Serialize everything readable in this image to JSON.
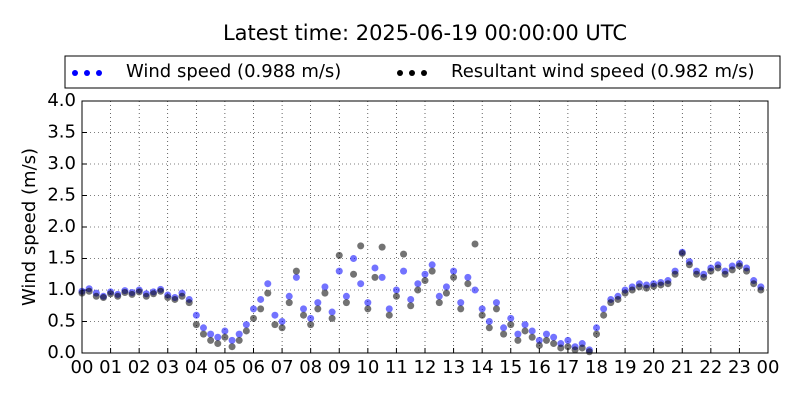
{
  "chart_data": {
    "type": "scatter",
    "title": "Latest time: 2025-06-19 00:00:00 UTC",
    "y_label": "Wind speed (m/s)",
    "x": [
      0,
      0.25,
      0.5,
      0.75,
      1,
      1.25,
      1.5,
      1.75,
      2,
      2.25,
      2.5,
      2.75,
      3,
      3.25,
      3.5,
      3.75,
      4,
      4.25,
      4.5,
      4.75,
      5,
      5.25,
      5.5,
      5.75,
      6,
      6.25,
      6.5,
      6.75,
      7,
      7.25,
      7.5,
      7.75,
      8,
      8.25,
      8.5,
      8.75,
      9,
      9.25,
      9.5,
      9.75,
      10,
      10.25,
      10.5,
      10.75,
      11,
      11.25,
      11.5,
      11.75,
      12,
      12.25,
      12.5,
      12.75,
      13,
      13.25,
      13.5,
      13.75,
      14,
      14.25,
      14.5,
      14.75,
      15,
      15.25,
      15.5,
      15.75,
      16,
      16.25,
      16.5,
      16.75,
      17,
      17.25,
      17.5,
      17.75,
      18,
      18.25,
      18.5,
      18.75,
      19,
      19.25,
      19.5,
      19.75,
      20,
      20.25,
      20.5,
      20.75,
      21,
      21.25,
      21.5,
      21.75,
      22,
      22.25,
      22.5,
      22.75,
      23,
      23.25,
      23.5,
      23.75
    ],
    "series": [
      {
        "name": "Wind speed (0.988 m/s)",
        "color": "#0000ff",
        "values": [
          0.98,
          1.02,
          0.95,
          0.9,
          0.97,
          0.93,
          0.99,
          0.96,
          1.0,
          0.94,
          0.97,
          1.01,
          0.92,
          0.88,
          0.95,
          0.85,
          0.6,
          0.4,
          0.3,
          0.25,
          0.35,
          0.2,
          0.3,
          0.45,
          0.7,
          0.85,
          1.1,
          0.6,
          0.5,
          0.9,
          1.2,
          0.7,
          0.55,
          0.8,
          1.05,
          0.65,
          1.3,
          0.9,
          1.5,
          1.1,
          0.8,
          1.35,
          1.2,
          0.7,
          1.0,
          1.3,
          0.85,
          1.1,
          1.25,
          1.4,
          0.9,
          1.05,
          1.3,
          0.8,
          1.2,
          1.0,
          0.7,
          0.5,
          0.8,
          0.4,
          0.55,
          0.3,
          0.45,
          0.35,
          0.2,
          0.3,
          0.25,
          0.15,
          0.2,
          0.1,
          0.15,
          0.05,
          0.4,
          0.7,
          0.85,
          0.9,
          1.0,
          1.05,
          1.1,
          1.08,
          1.1,
          1.12,
          1.15,
          1.3,
          1.6,
          1.45,
          1.3,
          1.25,
          1.35,
          1.4,
          1.3,
          1.38,
          1.42,
          1.35,
          1.15,
          1.05
        ]
      },
      {
        "name": "Resultant wind speed (0.982 m/s)",
        "color": "#000000",
        "values": [
          0.95,
          0.98,
          0.9,
          0.88,
          0.94,
          0.9,
          0.96,
          0.93,
          0.97,
          0.9,
          0.94,
          0.98,
          0.88,
          0.85,
          0.9,
          0.8,
          0.45,
          0.3,
          0.2,
          0.15,
          0.25,
          0.1,
          0.2,
          0.35,
          0.55,
          0.7,
          0.95,
          0.45,
          0.4,
          0.8,
          1.3,
          0.6,
          0.45,
          0.7,
          0.95,
          0.55,
          1.55,
          0.8,
          1.25,
          1.7,
          0.7,
          1.2,
          1.68,
          0.6,
          0.9,
          1.57,
          0.75,
          1.0,
          1.15,
          1.3,
          0.8,
          0.95,
          1.2,
          0.7,
          1.1,
          1.73,
          0.6,
          0.4,
          0.7,
          0.3,
          0.45,
          0.2,
          0.35,
          0.25,
          0.12,
          0.2,
          0.15,
          0.08,
          0.1,
          0.05,
          0.08,
          0.02,
          0.3,
          0.6,
          0.8,
          0.85,
          0.95,
          1.0,
          1.05,
          1.03,
          1.06,
          1.08,
          1.1,
          1.25,
          1.58,
          1.4,
          1.25,
          1.2,
          1.3,
          1.35,
          1.25,
          1.32,
          1.38,
          1.3,
          1.1,
          1.0
        ]
      }
    ],
    "xlim": [
      0,
      24
    ],
    "xticks": [
      {
        "value": 0,
        "label": "00"
      },
      {
        "value": 1,
        "label": "01"
      },
      {
        "value": 2,
        "label": "02"
      },
      {
        "value": 3,
        "label": "03"
      },
      {
        "value": 4,
        "label": "04"
      },
      {
        "value": 5,
        "label": "05"
      },
      {
        "value": 6,
        "label": "06"
      },
      {
        "value": 7,
        "label": "07"
      },
      {
        "value": 8,
        "label": "08"
      },
      {
        "value": 9,
        "label": "09"
      },
      {
        "value": 10,
        "label": "10"
      },
      {
        "value": 11,
        "label": "11"
      },
      {
        "value": 12,
        "label": "12"
      },
      {
        "value": 13,
        "label": "13"
      },
      {
        "value": 14,
        "label": "14"
      },
      {
        "value": 15,
        "label": "15"
      },
      {
        "value": 16,
        "label": "16"
      },
      {
        "value": 17,
        "label": "17"
      },
      {
        "value": 18,
        "label": "18"
      },
      {
        "value": 19,
        "label": "19"
      },
      {
        "value": 20,
        "label": "20"
      },
      {
        "value": 21,
        "label": "21"
      },
      {
        "value": 22,
        "label": "22"
      },
      {
        "value": 23,
        "label": "23"
      },
      {
        "value": 24,
        "label": "00"
      }
    ],
    "ylim": [
      0,
      4
    ],
    "yticks": [
      {
        "value": 0,
        "label": "0.0"
      },
      {
        "value": 0.5,
        "label": "0.5"
      },
      {
        "value": 1,
        "label": "1.0"
      },
      {
        "value": 1.5,
        "label": "1.5"
      },
      {
        "value": 2,
        "label": "2.0"
      },
      {
        "value": 2.5,
        "label": "2.5"
      },
      {
        "value": 3,
        "label": "3.0"
      },
      {
        "value": 3.5,
        "label": "3.5"
      },
      {
        "value": 4,
        "label": "4.0"
      }
    ],
    "grid": true
  }
}
